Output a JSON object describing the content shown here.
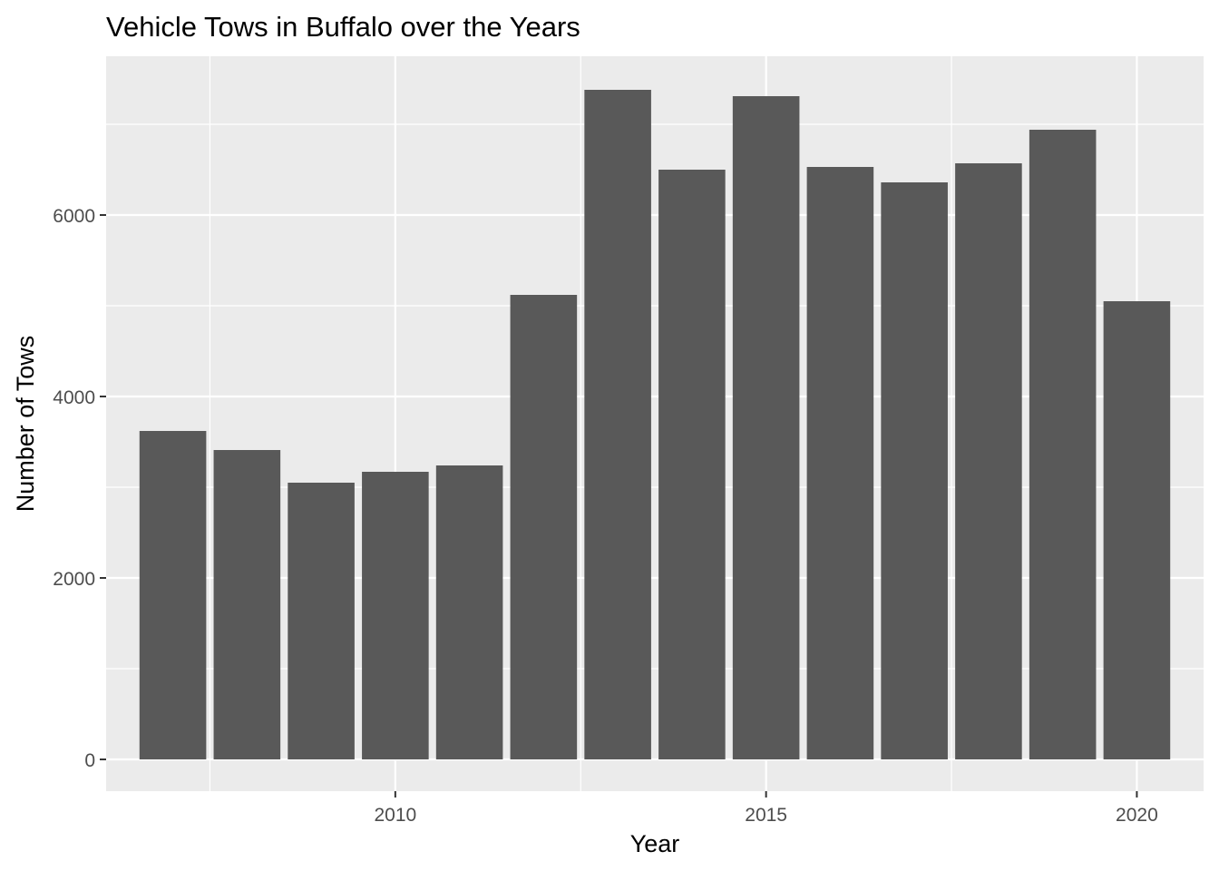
{
  "chart_data": {
    "type": "bar",
    "title": "Vehicle Tows in Buffalo over the Years",
    "xlabel": "Year",
    "ylabel": "Number of Tows",
    "categories": [
      2007,
      2008,
      2009,
      2010,
      2011,
      2012,
      2013,
      2014,
      2015,
      2016,
      2017,
      2018,
      2019,
      2020
    ],
    "values": [
      3620,
      3410,
      3050,
      3170,
      3240,
      5120,
      7380,
      6500,
      7310,
      6530,
      6360,
      6570,
      6940,
      5050
    ],
    "xlim": [
      2006.1,
      2020.9
    ],
    "ylim": [
      -350,
      7750
    ],
    "x_ticks": [
      2010,
      2015,
      2020
    ],
    "x_tick_labels": [
      "2010",
      "2015",
      "2020"
    ],
    "y_ticks": [
      0,
      2000,
      4000,
      6000
    ],
    "y_tick_labels": [
      "0",
      "2000",
      "4000",
      "6000"
    ],
    "grid": true,
    "legend": "none",
    "colors": {
      "panel_background": "#EBEBEB",
      "grid_major": "#FFFFFF",
      "bar_fill": "#595959",
      "tick_mark": "#333333",
      "tick_label": "#4D4D4D",
      "text": "#000000"
    }
  }
}
